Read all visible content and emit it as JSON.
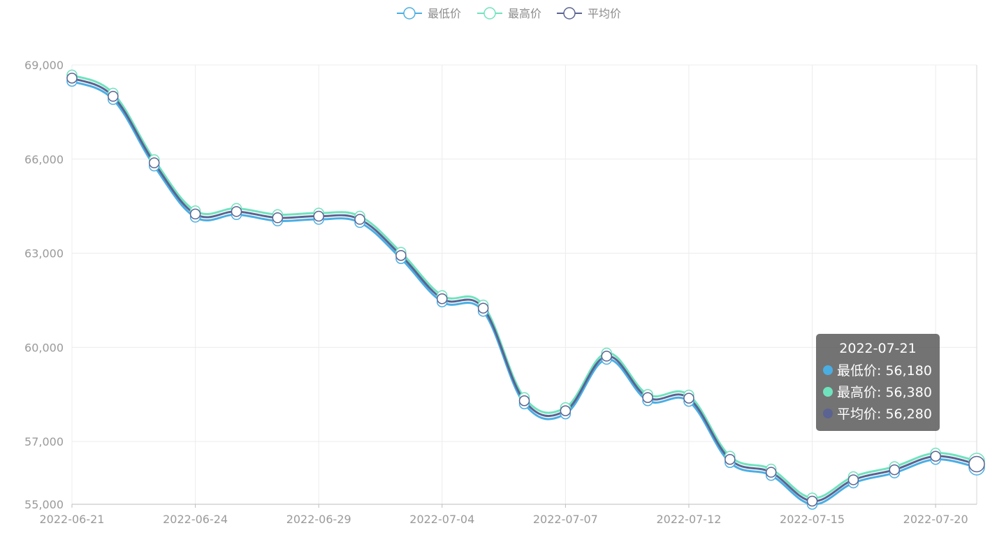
{
  "legend": {
    "items": [
      {
        "label": "最低价",
        "color": "#4aaee3"
      },
      {
        "label": "最高价",
        "color": "#6fe3be"
      },
      {
        "label": "平均价",
        "color": "#5a6391"
      }
    ]
  },
  "tooltip": {
    "title": "2022-07-21",
    "rows": [
      {
        "label": "最低价: 56,180",
        "color": "#4aaee3"
      },
      {
        "label": "最高价: 56,380",
        "color": "#6fe3be"
      },
      {
        "label": "平均价: 56,280",
        "color": "#5a6391"
      }
    ]
  },
  "chart_data": {
    "type": "line",
    "x": [
      "2022-06-21",
      "2022-06-22",
      "2022-06-23",
      "2022-06-24",
      "2022-06-27",
      "2022-06-28",
      "2022-06-29",
      "2022-06-30",
      "2022-07-01",
      "2022-07-04",
      "2022-07-05",
      "2022-07-06",
      "2022-07-07",
      "2022-07-08",
      "2022-07-11",
      "2022-07-12",
      "2022-07-13",
      "2022-07-14",
      "2022-07-15",
      "2022-07-18",
      "2022-07-19",
      "2022-07-20",
      "2022-07-21"
    ],
    "x_tick_labels": [
      "2022-06-21",
      "2022-06-24",
      "2022-06-29",
      "2022-07-04",
      "2022-07-07",
      "2022-07-12",
      "2022-07-15",
      "2022-07-20"
    ],
    "series": [
      {
        "name": "最低价",
        "color": "#4aaee3",
        "values": [
          68480,
          67900,
          65780,
          64150,
          64230,
          64030,
          64080,
          63980,
          62830,
          61450,
          61150,
          58200,
          57880,
          59620,
          58300,
          58280,
          56330,
          55920,
          55000,
          55680,
          56000,
          56430,
          56180
        ]
      },
      {
        "name": "最高价",
        "color": "#6fe3be",
        "values": [
          68680,
          68100,
          65980,
          64350,
          64430,
          64230,
          64280,
          64180,
          63030,
          61650,
          61350,
          58400,
          58080,
          59820,
          58500,
          58480,
          56530,
          56120,
          55200,
          55880,
          56200,
          56630,
          56380
        ]
      },
      {
        "name": "平均价",
        "color": "#5a6391",
        "values": [
          68580,
          68000,
          65880,
          64250,
          64330,
          64130,
          64180,
          64080,
          62930,
          61550,
          61250,
          58300,
          57980,
          59720,
          58400,
          58380,
          56430,
          56020,
          55100,
          55780,
          56100,
          56530,
          56280
        ]
      }
    ],
    "y_ticks": [
      "55,000",
      "57,000",
      "60,000",
      "63,000",
      "66,000",
      "69,000"
    ],
    "ylim": [
      55000,
      69000
    ],
    "grid": true,
    "legend": "top-center"
  }
}
